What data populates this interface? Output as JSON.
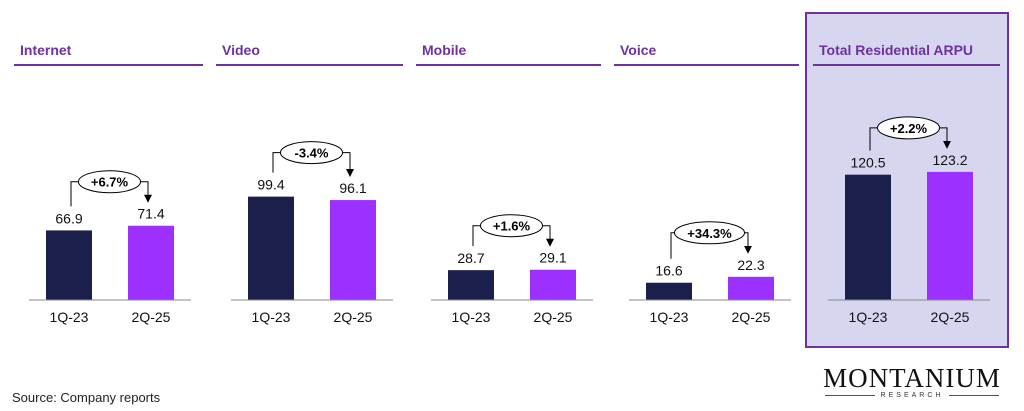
{
  "chart_data": [
    {
      "type": "bar",
      "title": "Internet",
      "categories": [
        "1Q-23",
        "2Q-25"
      ],
      "values": [
        66.9,
        71.4
      ],
      "value_labels": [
        "66.9",
        "71.4"
      ],
      "change_label": "+6.7%"
    },
    {
      "type": "bar",
      "title": "Video",
      "categories": [
        "1Q-23",
        "2Q-25"
      ],
      "values": [
        99.4,
        96.1
      ],
      "value_labels": [
        "99.4",
        "96.1"
      ],
      "change_label": "-3.4%"
    },
    {
      "type": "bar",
      "title": "Mobile",
      "categories": [
        "1Q-23",
        "2Q-25"
      ],
      "values": [
        28.7,
        29.1
      ],
      "value_labels": [
        "28.7",
        "29.1"
      ],
      "change_label": "+1.6%"
    },
    {
      "type": "bar",
      "title": "Voice",
      "categories": [
        "1Q-23",
        "2Q-25"
      ],
      "values": [
        16.6,
        22.3
      ],
      "value_labels": [
        "16.6",
        "22.3"
      ],
      "change_label": "+34.3%"
    },
    {
      "type": "bar",
      "title": "Total Residential ARPU",
      "categories": [
        "1Q-23",
        "2Q-25"
      ],
      "values": [
        120.5,
        123.2
      ],
      "value_labels": [
        "120.5",
        "123.2"
      ],
      "change_label": "+2.2%",
      "highlighted": true
    }
  ],
  "colors": {
    "bar_1q23": "#1b1f4b",
    "bar_2q25": "#9b30ff",
    "title": "#7030a0",
    "highlight_fill": "#d6d6f0",
    "highlight_border": "#7030a0"
  },
  "footer": {
    "source": "Source: Company reports",
    "logo_main": "MONTANIUM",
    "logo_sub": "RESEARCH"
  }
}
